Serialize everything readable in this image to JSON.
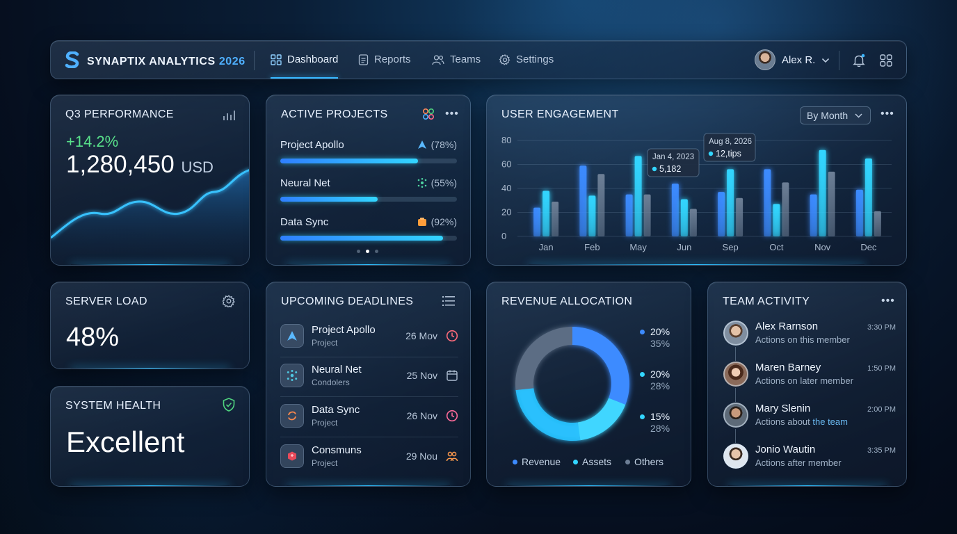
{
  "nav": {
    "brand": "SYNAPTIX ANALYTICS",
    "brand_year": "2026",
    "items": [
      {
        "label": "Dashboard",
        "icon": "grid-icon",
        "active": true
      },
      {
        "label": "Reports",
        "icon": "document-icon"
      },
      {
        "label": "Teams",
        "icon": "users-icon"
      },
      {
        "label": "Settings",
        "icon": "gear-icon"
      }
    ],
    "user_name": "Alex R."
  },
  "q3": {
    "title": "Q3 PERFORMANCE",
    "change": "+14.2%",
    "value": "1,280,450",
    "unit": "USD"
  },
  "projects": {
    "title": "ACTIVE PROJECTS",
    "items": [
      {
        "name": "Project Apollo",
        "pct_label": "(78%)",
        "value": 78
      },
      {
        "name": "Neural Net",
        "pct_label": "(55%)",
        "value": 55
      },
      {
        "name": "Data Sync",
        "pct_label": "(92%)",
        "value": 92
      }
    ]
  },
  "engagement": {
    "title": "USER ENGAGEMENT",
    "filter": "By Month",
    "tooltip1": {
      "date": "Jan 4, 2023",
      "value": "5,182"
    },
    "tooltip2": {
      "date": "Aug 8, 2026",
      "value": "12,tips"
    }
  },
  "chart_data": {
    "type": "bar",
    "categories": [
      "Jan",
      "Feb",
      "May",
      "Jun",
      "Sep",
      "Oct",
      "Nov",
      "Dec"
    ],
    "series": [
      {
        "values": [
          24,
          59,
          35,
          44,
          37,
          56,
          35,
          39
        ]
      },
      {
        "values": [
          38,
          34,
          67,
          31,
          56,
          27,
          72,
          65
        ]
      },
      {
        "values": [
          29,
          52,
          35,
          23,
          32,
          45,
          54,
          21
        ]
      }
    ],
    "colors": [
      "#3d8bff",
      "#33d6ff",
      "#6d7f96"
    ],
    "ylim": [
      0,
      80
    ],
    "yticks": [
      0,
      20,
      40,
      60,
      80
    ],
    "grid": true
  },
  "server": {
    "title": "SERVER LOAD",
    "value": "48%"
  },
  "health": {
    "title": "SYSTEM HEALTH",
    "value": "Excellent"
  },
  "deadlines": {
    "title": "UPCOMING DEADLINES",
    "items": [
      {
        "name": "Project Apollo",
        "sub": "Project",
        "date": "26 Mov",
        "icon": "clock-icon"
      },
      {
        "name": "Neural Net",
        "sub": "Condolers",
        "date": "25 Nov",
        "icon": "calendar-icon"
      },
      {
        "name": "Data Sync",
        "sub": "Project",
        "date": "26 Nov",
        "icon": "clock-icon"
      },
      {
        "name": "Consmuns",
        "sub": "Project",
        "date": "29 Nou",
        "icon": "people-icon"
      }
    ]
  },
  "revenue": {
    "title": "REVENUE ALLOCATION",
    "values": [
      {
        "primary": "20%",
        "secondary": "35%",
        "color": "#3d8bff"
      },
      {
        "primary": "20%",
        "secondary": "28%",
        "color": "#33d6ff"
      },
      {
        "primary": "15%",
        "secondary": "28%",
        "color": "#33d6ff"
      }
    ],
    "legend": [
      {
        "label": "Revenue",
        "color": "#3d8bff"
      },
      {
        "label": "Assets",
        "color": "#33d6ff"
      },
      {
        "label": "Others",
        "color": "#6d7f96"
      }
    ]
  },
  "team": {
    "title": "TEAM ACTIVITY",
    "items": [
      {
        "name": "Alex Rarnson",
        "sub": "Actions on this member",
        "time": "3:30 PM"
      },
      {
        "name": "Maren Barney",
        "sub": "Actions on later member",
        "time": "1:50 PM"
      },
      {
        "name": "Mary Slenin",
        "sub_a": "Actions about ",
        "sub_b": "the team",
        "time": "2:00 PM"
      },
      {
        "name": "Jonio Wautin",
        "sub": "Actions after member",
        "time": "3:35 PM"
      }
    ]
  }
}
